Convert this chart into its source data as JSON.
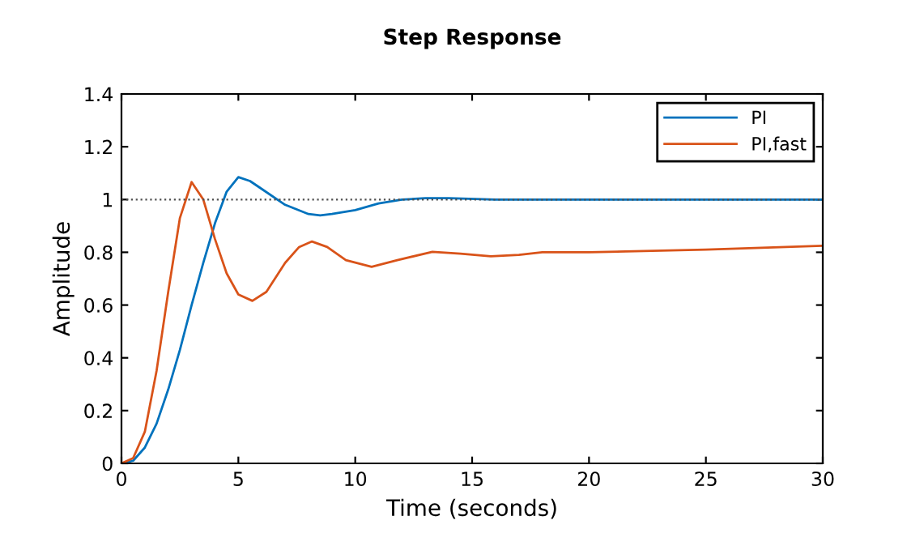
{
  "chart_data": {
    "type": "line",
    "title": "Step Response",
    "xlabel": "Time (seconds)",
    "ylabel": "Amplitude",
    "xlim": [
      0,
      30
    ],
    "xticks": [
      0,
      5,
      10,
      15,
      20,
      25,
      30
    ],
    "ylim": [
      0,
      1.4
    ],
    "yticks": [
      0,
      0.2,
      0.4,
      0.6,
      0.8,
      1,
      1.2,
      1.4
    ],
    "grid": false,
    "legend": "top right",
    "marker": "none",
    "line_style": "solid",
    "ref_lines": [
      {
        "axis": "y",
        "value": 1,
        "label": null,
        "color": "#505050",
        "line_style": "dotted"
      }
    ],
    "series": [
      {
        "name": "PI",
        "color": "#0072bd",
        "x": [
          0,
          0.5,
          1,
          1.5,
          2,
          2.5,
          3,
          3.5,
          4,
          4.5,
          5,
          5.5,
          6,
          7,
          8,
          8.5,
          9,
          10,
          11,
          12,
          13,
          14,
          16,
          20,
          30
        ],
        "values": [
          0,
          0.01,
          0.06,
          0.15,
          0.28,
          0.43,
          0.6,
          0.76,
          0.91,
          1.03,
          1.085,
          1.07,
          1.04,
          0.98,
          0.945,
          0.94,
          0.945,
          0.96,
          0.985,
          1.0,
          1.005,
          1.005,
          1.0,
          1.0,
          1.0
        ]
      },
      {
        "name": "PI,fast",
        "color": "#d95319",
        "x": [
          0,
          0.5,
          1,
          1.5,
          2,
          2.5,
          3,
          3.5,
          4,
          4.5,
          5,
          5.6,
          6.2,
          7,
          7.6,
          8.15,
          8.8,
          9.6,
          10.7,
          11.8,
          13.3,
          14.5,
          15.8,
          17,
          18,
          20,
          25,
          30
        ],
        "values": [
          0,
          0.02,
          0.12,
          0.35,
          0.65,
          0.93,
          1.066,
          1.0,
          0.85,
          0.72,
          0.64,
          0.616,
          0.65,
          0.76,
          0.82,
          0.841,
          0.82,
          0.77,
          0.745,
          0.77,
          0.802,
          0.795,
          0.785,
          0.79,
          0.8,
          0.8,
          0.81,
          0.825
        ]
      }
    ]
  }
}
